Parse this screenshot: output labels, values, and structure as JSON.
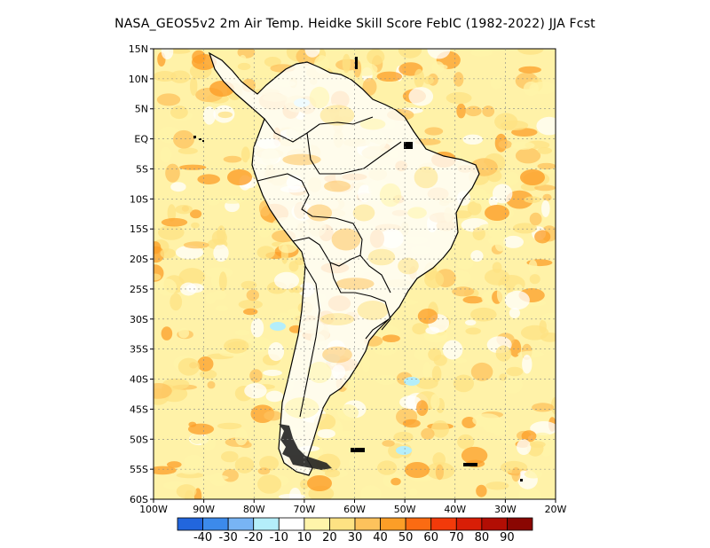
{
  "title": "NASA_GEOS5v2  2m Air Temp. Heidke Skill Score FebIC (1982-2022) JJA Fcst",
  "lat_labels": [
    "15N",
    "10N",
    "5N",
    "EQ",
    "5S",
    "10S",
    "15S",
    "20S",
    "25S",
    "30S",
    "35S",
    "40S",
    "45S",
    "50S",
    "55S",
    "60S"
  ],
  "lon_labels": [
    "100W",
    "90W",
    "80W",
    "70W",
    "60W",
    "50W",
    "40W",
    "30W",
    "20W"
  ],
  "colorbar": {
    "colors": [
      "#2266dd",
      "#3c8aeb",
      "#78b4f4",
      "#b4eefa",
      "#ffffff",
      "#fff4aa",
      "#fee283",
      "#fdc25c",
      "#fc9e27",
      "#fb6b12",
      "#f23a0a",
      "#d81e06",
      "#b20e04",
      "#8a0602"
    ],
    "labels": [
      "-40",
      "-30",
      "-20",
      "-10",
      "10",
      "20",
      "30",
      "40",
      "50",
      "60",
      "70",
      "80",
      "90"
    ]
  },
  "map_colors": {
    "land_base": "#ffffff",
    "ocean_base": "#fff2a8",
    "coast": "#000000"
  }
}
